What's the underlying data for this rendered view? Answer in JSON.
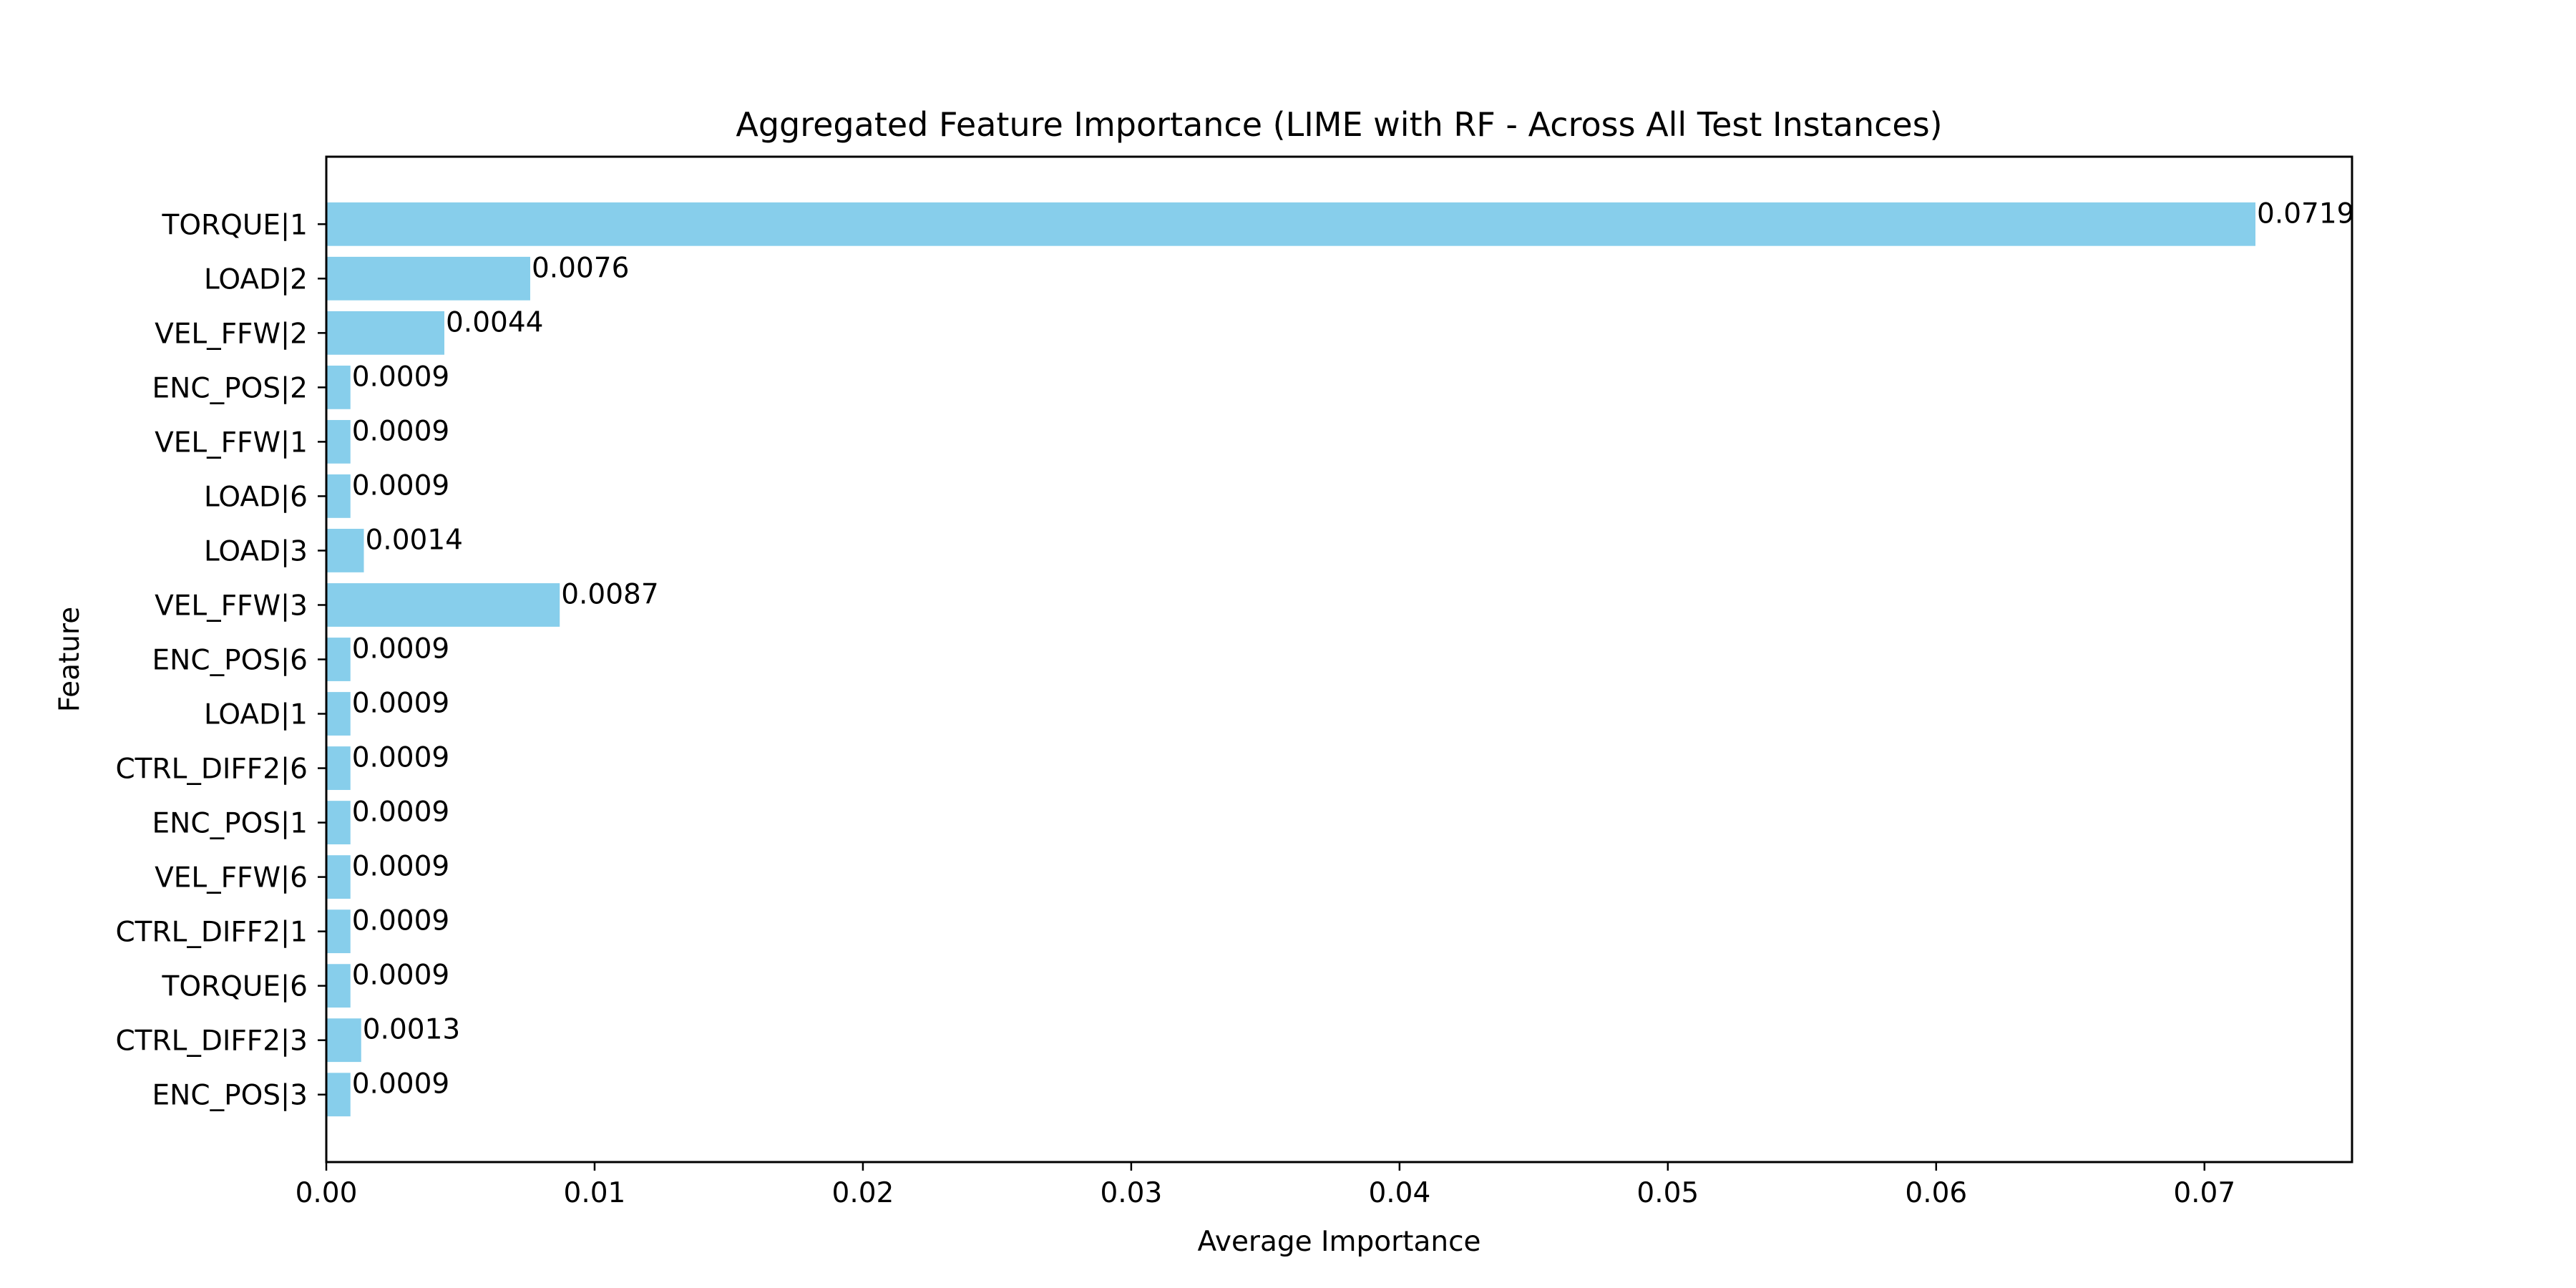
{
  "chart_data": {
    "type": "bar",
    "orientation": "horizontal",
    "title": "Aggregated Feature Importance (LIME with RF - Across All Test Instances)",
    "xlabel": "Average Importance",
    "ylabel": "Feature",
    "categories": [
      "TORQUE|1",
      "LOAD|2",
      "VEL_FFW|2",
      "ENC_POS|2",
      "VEL_FFW|1",
      "LOAD|6",
      "LOAD|3",
      "VEL_FFW|3",
      "ENC_POS|6",
      "LOAD|1",
      "CTRL_DIFF2|6",
      "ENC_POS|1",
      "VEL_FFW|6",
      "CTRL_DIFF2|1",
      "TORQUE|6",
      "CTRL_DIFF2|3",
      "ENC_POS|3"
    ],
    "values": [
      0.0719,
      0.0076,
      0.0044,
      0.0009,
      0.0009,
      0.0009,
      0.0014,
      0.0087,
      0.0009,
      0.0009,
      0.0009,
      0.0009,
      0.0009,
      0.0009,
      0.0009,
      0.0013,
      0.0009
    ],
    "value_labels": [
      "0.0719",
      "0.0076",
      "0.0044",
      "0.0009",
      "0.0009",
      "0.0009",
      "0.0014",
      "0.0087",
      "0.0009",
      "0.0009",
      "0.0009",
      "0.0009",
      "0.0009",
      "0.0009",
      "0.0009",
      "0.0013",
      "0.0009"
    ],
    "xlim": [
      0,
      0.0755
    ],
    "xticks": [
      0,
      0.01,
      0.02,
      0.03,
      0.04,
      0.05,
      0.06,
      0.07
    ],
    "xtick_labels": [
      "0.00",
      "0.01",
      "0.02",
      "0.03",
      "0.04",
      "0.05",
      "0.06",
      "0.07"
    ],
    "grid": false,
    "legend": "none",
    "colors": {
      "bar": "#87CEEB",
      "axes": "#000000",
      "background": "#ffffff"
    }
  }
}
